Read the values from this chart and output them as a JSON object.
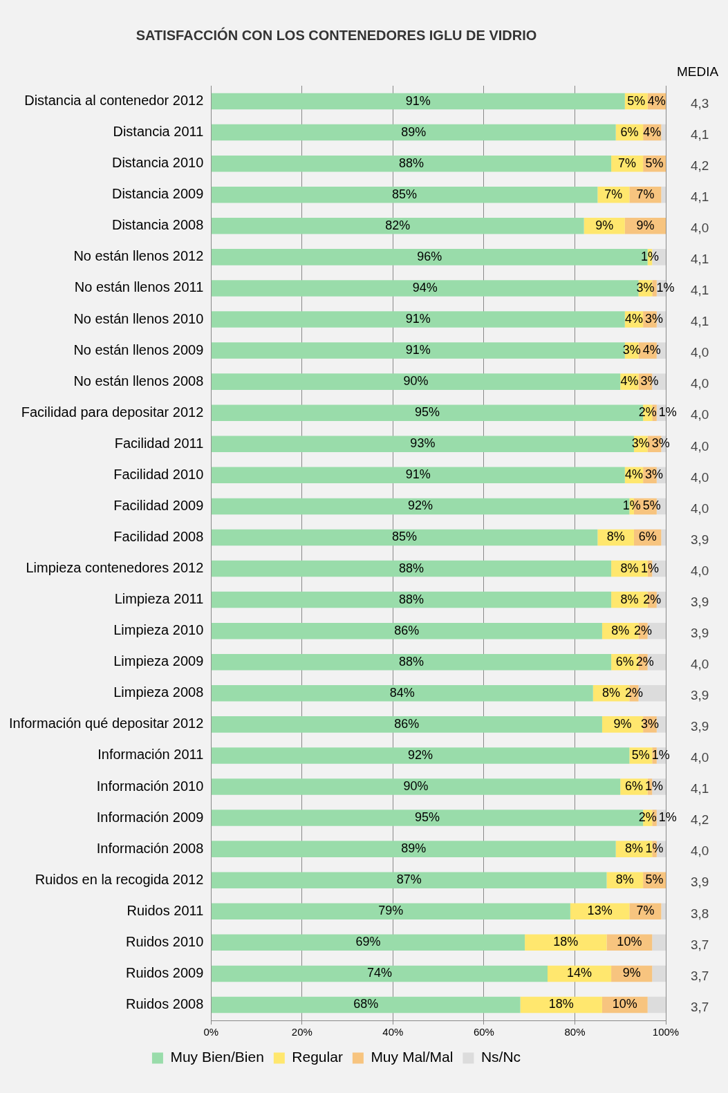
{
  "chart_data": {
    "type": "bar",
    "orientation": "horizontal",
    "stacked": true,
    "title": "SATISFACCIÓN CON LOS CONTENEDORES IGLU DE VIDRIO",
    "categories": [
      "Distancia al contenedor 2012",
      "Distancia 2011",
      "Distancia 2010",
      "Distancia 2009",
      "Distancia 2008",
      "No están llenos 2012",
      "No están llenos 2011",
      "No están llenos 2010",
      "No están llenos 2009",
      "No están llenos 2008",
      "Facilidad para depositar 2012",
      "Facilidad 2011",
      "Facilidad 2010",
      "Facilidad 2009",
      "Facilidad 2008",
      "Limpieza contenedores 2012",
      "Limpieza 2011",
      "Limpieza 2010",
      "Limpieza 2009",
      "Limpieza 2008",
      "Información qué depositar 2012",
      "Información 2011",
      "Información 2010",
      "Información 2009",
      "Información 2008",
      "Ruidos en la recogida 2012",
      "Ruidos 2011",
      "Ruidos 2010",
      "Ruidos 2009",
      "Ruidos 2008"
    ],
    "series": [
      {
        "name": "Muy Bien/Bien",
        "color": "#99dcaa",
        "values": [
          91,
          89,
          88,
          85,
          82,
          96,
          94,
          91,
          91,
          90,
          95,
          93,
          91,
          92,
          85,
          88,
          88,
          86,
          88,
          84,
          86,
          92,
          90,
          95,
          89,
          87,
          79,
          69,
          74,
          68
        ],
        "value_labels": [
          "91%",
          "89%",
          "88%",
          "85%",
          "82%",
          "96%",
          "94%",
          "91%",
          "91%",
          "90%",
          "95%",
          "93%",
          "91%",
          "92%",
          "85%",
          "88%",
          "88%",
          "86%",
          "88%",
          "84%",
          "86%",
          "92%",
          "90%",
          "95%",
          "89%",
          "87%",
          "79%",
          "69%",
          "74%",
          "68%"
        ]
      },
      {
        "name": "Regular",
        "color": "#ffe76e",
        "values": [
          5,
          6,
          7,
          7,
          9,
          1,
          3,
          4,
          3,
          4,
          2,
          3,
          4,
          1,
          8,
          8,
          8,
          8,
          6,
          8,
          9,
          5,
          6,
          2,
          8,
          8,
          13,
          18,
          14,
          18
        ],
        "value_labels": [
          "5%",
          "6%",
          "7%",
          "7%",
          "9%",
          "1%",
          "3%",
          "4%",
          "3%",
          "4%",
          "2%",
          "3%",
          "4%",
          "1%",
          "8%",
          "8%",
          "8%",
          "8%",
          "6%",
          "8%",
          "9%",
          "5%",
          "6%",
          "2%",
          "8%",
          "8%",
          "13%",
          "18%",
          "14%",
          "18%"
        ]
      },
      {
        "name": "Muy Mal/Mal",
        "color": "#f7c47f",
        "values": [
          4,
          4,
          5,
          7,
          9,
          0,
          1,
          3,
          4,
          3,
          1,
          3,
          3,
          5,
          6,
          1,
          2,
          2,
          2,
          2,
          3,
          1,
          1,
          1,
          1,
          5,
          7,
          10,
          9,
          10
        ],
        "value_labels": [
          "4%",
          "4%",
          "5%",
          "7%",
          "9%",
          null,
          "1%",
          "3%",
          "4%",
          "3%",
          "1%",
          "3%",
          "3%",
          "5%",
          "6%",
          "1%",
          "2%",
          "2%",
          "2%",
          "2%",
          "3%",
          "1%",
          "1%",
          "1%",
          "1%",
          "5%",
          "7%",
          "10%",
          "9%",
          "10%"
        ]
      },
      {
        "name": "Ns/Nc",
        "color": "#dcdcdc",
        "values": [
          0,
          1,
          0,
          1,
          0,
          3,
          2,
          2,
          2,
          3,
          2,
          1,
          2,
          2,
          1,
          3,
          2,
          4,
          4,
          6,
          2,
          2,
          3,
          2,
          2,
          0,
          1,
          3,
          3,
          4
        ]
      }
    ],
    "xlim": [
      0,
      100
    ],
    "xticks": [
      {
        "value": 0,
        "label": "0%"
      },
      {
        "value": 20,
        "label": "20%"
      },
      {
        "value": 40,
        "label": "40%"
      },
      {
        "value": 60,
        "label": "60%"
      },
      {
        "value": 80,
        "label": "80%"
      },
      {
        "value": 100,
        "label": "100%"
      }
    ],
    "grid": "x",
    "legend": "bottom",
    "annotations": [
      "MEDIA",
      "4,3",
      "4,1",
      "4,2",
      "4,1",
      "4,0",
      "4,1",
      "4,1",
      "4,1",
      "4,0",
      "4,0",
      "4,0",
      "4,0",
      "4,0",
      "4,0",
      "3,9",
      "4,0",
      "3,9",
      "3,9",
      "4,0",
      "3,9",
      "3,9",
      "4,0",
      "4,1",
      "4,2",
      "4,0",
      "3,9",
      "3,8",
      "3,7",
      "3,7",
      "3,7"
    ]
  }
}
